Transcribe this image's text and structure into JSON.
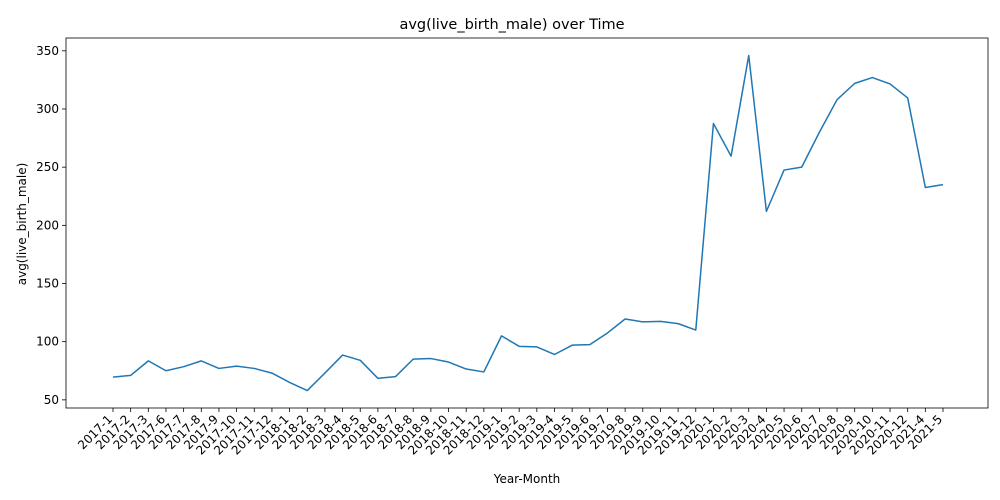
{
  "chart_data": {
    "type": "line",
    "title": "avg(live_birth_male) over Time",
    "xlabel": "Year-Month",
    "ylabel": "avg(live_birth_male)",
    "categories": [
      "2017-1",
      "2017-2",
      "2017-3",
      "2017-6",
      "2017-7",
      "2017-8",
      "2017-9",
      "2017-10",
      "2017-11",
      "2017-12",
      "2018-1",
      "2018-2",
      "2018-3",
      "2018-4",
      "2018-5",
      "2018-6",
      "2018-7",
      "2018-8",
      "2018-9",
      "2018-10",
      "2018-11",
      "2018-12",
      "2019-1",
      "2019-2",
      "2019-3",
      "2019-4",
      "2019-5",
      "2019-6",
      "2019-7",
      "2019-8",
      "2019-9",
      "2019-10",
      "2019-11",
      "2019-12",
      "2020-1",
      "2020-2",
      "2020-3",
      "2020-4",
      "2020-5",
      "2020-6",
      "2020-7",
      "2020-8",
      "2020-9",
      "2020-10",
      "2020-11",
      "2020-12",
      "2021-4",
      "2021-5"
    ],
    "values": [
      69.5,
      71,
      83.5,
      75,
      78.5,
      83.5,
      77,
      79,
      77,
      73,
      65,
      58,
      73,
      88.5,
      84,
      68.5,
      70,
      85,
      85.5,
      82.5,
      76.5,
      74,
      105,
      96,
      95.5,
      89,
      97,
      97.5,
      107.5,
      119.5,
      117,
      117.5,
      115.5,
      110,
      287.5,
      259.5,
      346,
      212,
      247.5,
      250,
      280,
      308,
      322,
      327,
      321.5,
      309.5,
      232.5,
      235
    ],
    "yticks": [
      50,
      100,
      150,
      200,
      250,
      300,
      350
    ],
    "ylim": [
      43,
      361
    ],
    "grid": false,
    "line_color": "#1f77b4"
  }
}
